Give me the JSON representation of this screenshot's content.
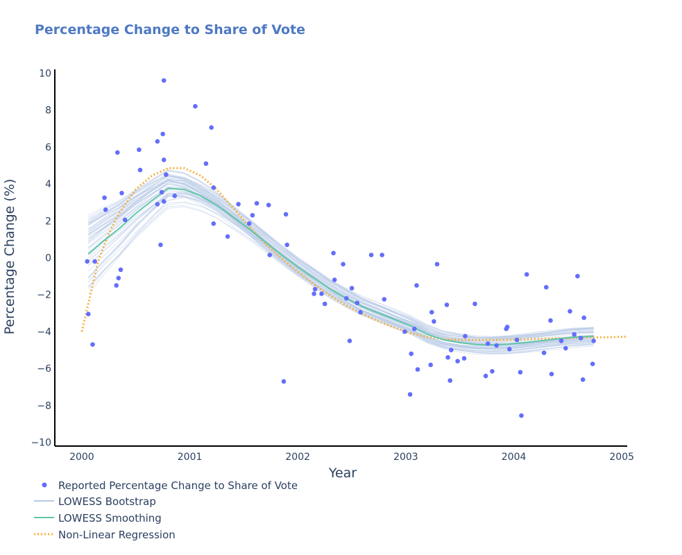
{
  "chart_data": {
    "type": "scatter",
    "title": "Percentage Change to Share of Vote",
    "xlabel": "Year",
    "ylabel": "Percentage Change (%)",
    "xlim": [
      1999.75,
      2005.05
    ],
    "ylim": [
      -10.2,
      10.2
    ],
    "xticks": [
      2000,
      2001,
      2002,
      2003,
      2004,
      2005
    ],
    "xtick_labels": [
      "2000",
      "2001",
      "2002",
      "2003",
      "2004",
      "2005"
    ],
    "yticks": [
      -10,
      -8,
      -6,
      -4,
      -2,
      0,
      2,
      4,
      6,
      8,
      10
    ],
    "ytick_labels": [
      "−10",
      "−8",
      "−6",
      "−4",
      "−2",
      "0",
      "2",
      "4",
      "6",
      "8",
      "10"
    ],
    "grid": false,
    "legend_position": "bottom-left",
    "colors": {
      "points": "#636efa",
      "bootstrap": "#b6c9e6",
      "lowess": "#5fc6a6",
      "regression": "#f5b13c",
      "title": "#4e79c2",
      "text": "#2a3f5f"
    },
    "legend": [
      {
        "label": "Reported Percentage Change to Share of Vote",
        "kind": "marker",
        "color": "#636efa"
      },
      {
        "label": "LOWESS Bootstrap",
        "kind": "line",
        "color": "#b6c9e6"
      },
      {
        "label": "LOWESS Smoothing",
        "kind": "line",
        "color": "#5fc6a6"
      },
      {
        "label": "Non-Linear Regression",
        "kind": "dot",
        "color": "#f5b13c"
      }
    ],
    "series": [
      {
        "name": "Reported Percentage Change to Share of Vote",
        "type": "scatter",
        "points": [
          [
            2000.05,
            -0.2
          ],
          [
            2000.06,
            -3.05
          ],
          [
            2000.1,
            -4.7
          ],
          [
            2000.12,
            -0.2
          ],
          [
            2000.21,
            3.25
          ],
          [
            2000.22,
            2.6
          ],
          [
            2000.32,
            -1.5
          ],
          [
            2000.33,
            5.7
          ],
          [
            2000.34,
            -1.1
          ],
          [
            2000.36,
            -0.65
          ],
          [
            2000.37,
            3.5
          ],
          [
            2000.4,
            2.05
          ],
          [
            2000.53,
            5.85
          ],
          [
            2000.54,
            4.75
          ],
          [
            2000.7,
            6.3
          ],
          [
            2000.7,
            2.9
          ],
          [
            2000.73,
            0.7
          ],
          [
            2000.74,
            3.55
          ],
          [
            2000.75,
            6.7
          ],
          [
            2000.76,
            5.3
          ],
          [
            2000.76,
            3.05
          ],
          [
            2000.76,
            9.6
          ],
          [
            2000.78,
            4.5
          ],
          [
            2000.86,
            3.35
          ],
          [
            2001.05,
            8.2
          ],
          [
            2001.15,
            5.1
          ],
          [
            2001.2,
            7.05
          ],
          [
            2001.22,
            3.8
          ],
          [
            2001.22,
            1.85
          ],
          [
            2001.35,
            1.15
          ],
          [
            2001.45,
            2.9
          ],
          [
            2001.55,
            1.85
          ],
          [
            2001.58,
            2.3
          ],
          [
            2001.62,
            2.95
          ],
          [
            2001.73,
            2.85
          ],
          [
            2001.74,
            0.15
          ],
          [
            2001.87,
            -6.7
          ],
          [
            2001.89,
            2.35
          ],
          [
            2001.9,
            0.7
          ],
          [
            2002.15,
            -1.95
          ],
          [
            2002.16,
            -1.7
          ],
          [
            2002.22,
            -1.95
          ],
          [
            2002.25,
            -2.5
          ],
          [
            2002.33,
            0.25
          ],
          [
            2002.34,
            -1.2
          ],
          [
            2002.42,
            -0.35
          ],
          [
            2002.45,
            -2.2
          ],
          [
            2002.48,
            -4.5
          ],
          [
            2002.5,
            -1.65
          ],
          [
            2002.55,
            -2.45
          ],
          [
            2002.58,
            -2.95
          ],
          [
            2002.68,
            0.15
          ],
          [
            2002.78,
            0.15
          ],
          [
            2002.8,
            -2.25
          ],
          [
            2002.99,
            -4.0
          ],
          [
            2003.04,
            -7.4
          ],
          [
            2003.05,
            -5.2
          ],
          [
            2003.08,
            -3.85
          ],
          [
            2003.1,
            -1.5
          ],
          [
            2003.11,
            -6.05
          ],
          [
            2003.23,
            -5.8
          ],
          [
            2003.24,
            -2.95
          ],
          [
            2003.26,
            -3.45
          ],
          [
            2003.29,
            -0.35
          ],
          [
            2003.38,
            -2.55
          ],
          [
            2003.39,
            -5.4
          ],
          [
            2003.41,
            -6.65
          ],
          [
            2003.42,
            -5.0
          ],
          [
            2003.48,
            -5.6
          ],
          [
            2003.54,
            -5.45
          ],
          [
            2003.55,
            -4.25
          ],
          [
            2003.64,
            -2.5
          ],
          [
            2003.74,
            -6.4
          ],
          [
            2003.76,
            -4.65
          ],
          [
            2003.8,
            -6.15
          ],
          [
            2003.84,
            -4.75
          ],
          [
            2003.93,
            -3.85
          ],
          [
            2003.94,
            -3.75
          ],
          [
            2003.96,
            -4.95
          ],
          [
            2004.03,
            -4.45
          ],
          [
            2004.06,
            -6.2
          ],
          [
            2004.07,
            -8.55
          ],
          [
            2004.12,
            -0.9
          ],
          [
            2004.28,
            -5.15
          ],
          [
            2004.3,
            -1.6
          ],
          [
            2004.34,
            -3.4
          ],
          [
            2004.35,
            -6.3
          ],
          [
            2004.44,
            -4.5
          ],
          [
            2004.48,
            -4.9
          ],
          [
            2004.52,
            -2.9
          ],
          [
            2004.56,
            -4.15
          ],
          [
            2004.59,
            -1.0
          ],
          [
            2004.62,
            -4.35
          ],
          [
            2004.64,
            -6.6
          ],
          [
            2004.65,
            -3.25
          ],
          [
            2004.73,
            -5.75
          ],
          [
            2004.74,
            -4.5
          ]
        ]
      },
      {
        "name": "LOWESS Smoothing",
        "type": "line",
        "x": [
          2000.06,
          2000.2,
          2000.35,
          2000.5,
          2000.65,
          2000.8,
          2000.95,
          2001.1,
          2001.25,
          2001.4,
          2001.55,
          2001.7,
          2001.85,
          2002.0,
          2002.15,
          2002.3,
          2002.45,
          2002.6,
          2002.75,
          2002.9,
          2003.05,
          2003.2,
          2003.35,
          2003.5,
          2003.65,
          2003.8,
          2003.95,
          2004.1,
          2004.25,
          2004.4,
          2004.55,
          2004.74
        ],
        "y": [
          0.2,
          0.9,
          1.6,
          2.4,
          3.1,
          3.75,
          3.7,
          3.35,
          2.85,
          2.2,
          1.55,
          0.85,
          0.15,
          -0.5,
          -1.1,
          -1.7,
          -2.2,
          -2.65,
          -3.0,
          -3.35,
          -3.7,
          -4.15,
          -4.45,
          -4.6,
          -4.7,
          -4.72,
          -4.68,
          -4.6,
          -4.5,
          -4.4,
          -4.3,
          -4.25
        ]
      },
      {
        "name": "Non-Linear Regression",
        "type": "line",
        "x": [
          2000.0,
          2000.08,
          2000.15,
          2000.25,
          2000.35,
          2000.5,
          2000.65,
          2000.8,
          2000.95,
          2001.1,
          2001.25,
          2001.4,
          2001.55,
          2001.7,
          2001.85,
          2002.0,
          2002.15,
          2002.3,
          2002.45,
          2002.6,
          2002.75,
          2002.9,
          2003.05,
          2003.2,
          2003.35,
          2003.5,
          2003.65,
          2003.8,
          2003.95,
          2004.1,
          2004.3,
          2004.5,
          2004.7,
          2004.9,
          2005.05
        ],
        "y": [
          -4.0,
          -2.0,
          -0.2,
          1.3,
          2.45,
          3.7,
          4.45,
          4.85,
          4.85,
          4.45,
          3.7,
          2.7,
          1.7,
          0.75,
          -0.05,
          -0.75,
          -1.45,
          -2.05,
          -2.6,
          -3.05,
          -3.45,
          -3.8,
          -4.1,
          -4.3,
          -4.4,
          -4.45,
          -4.45,
          -4.45,
          -4.45,
          -4.42,
          -4.38,
          -4.35,
          -4.32,
          -4.3,
          -4.27
        ]
      }
    ]
  }
}
